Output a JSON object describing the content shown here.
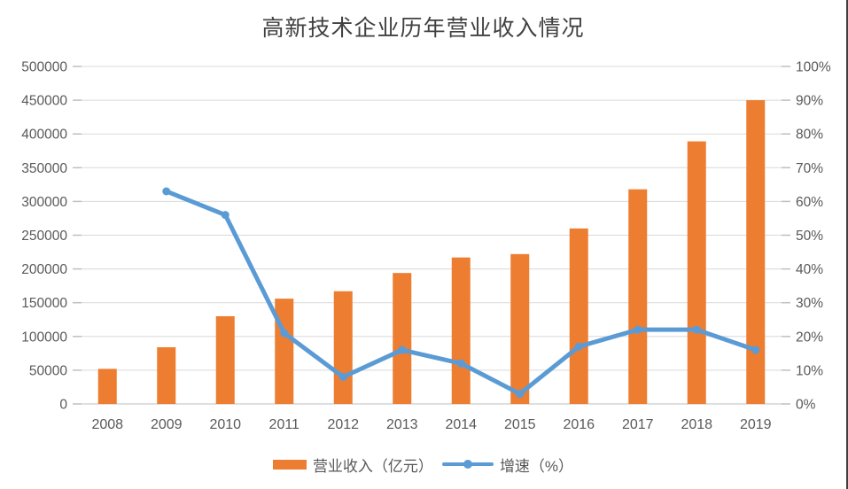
{
  "chart_data": {
    "type": "combo",
    "title": "高新技术企业历年营业收入情况",
    "categories": [
      "2008",
      "2009",
      "2010",
      "2011",
      "2012",
      "2013",
      "2014",
      "2015",
      "2016",
      "2017",
      "2018",
      "2019"
    ],
    "series": [
      {
        "name": "营业收入（亿元）",
        "type": "bar",
        "axis": "left",
        "color": "#ED7D31",
        "values": [
          52000,
          84000,
          130000,
          156000,
          167000,
          194000,
          217000,
          222000,
          260000,
          318000,
          389000,
          450000
        ]
      },
      {
        "name": "增速（%）",
        "type": "line",
        "axis": "right",
        "color": "#5B9BD5",
        "values": [
          null,
          63,
          56,
          21,
          8,
          16,
          12,
          3,
          17,
          22,
          22,
          16
        ]
      }
    ],
    "left_axis": {
      "min": 0,
      "max": 500000,
      "step": 50000,
      "tick_labels": [
        "0",
        "50000",
        "100000",
        "150000",
        "200000",
        "250000",
        "300000",
        "350000",
        "400000",
        "450000",
        "500000"
      ]
    },
    "right_axis": {
      "min": 0,
      "max": 100,
      "step": 10,
      "tick_labels": [
        "0%",
        "10%",
        "20%",
        "30%",
        "40%",
        "50%",
        "60%",
        "70%",
        "80%",
        "90%",
        "100%"
      ]
    },
    "grid": true,
    "legend_position": "bottom",
    "colors": {
      "gridline": "#D9D9D9",
      "axis_line": "#BFBFBF",
      "tick": "#BFBFBF",
      "text": "#595959",
      "title": "#404040",
      "bar": "#ED7D31",
      "line": "#5B9BD5"
    }
  }
}
